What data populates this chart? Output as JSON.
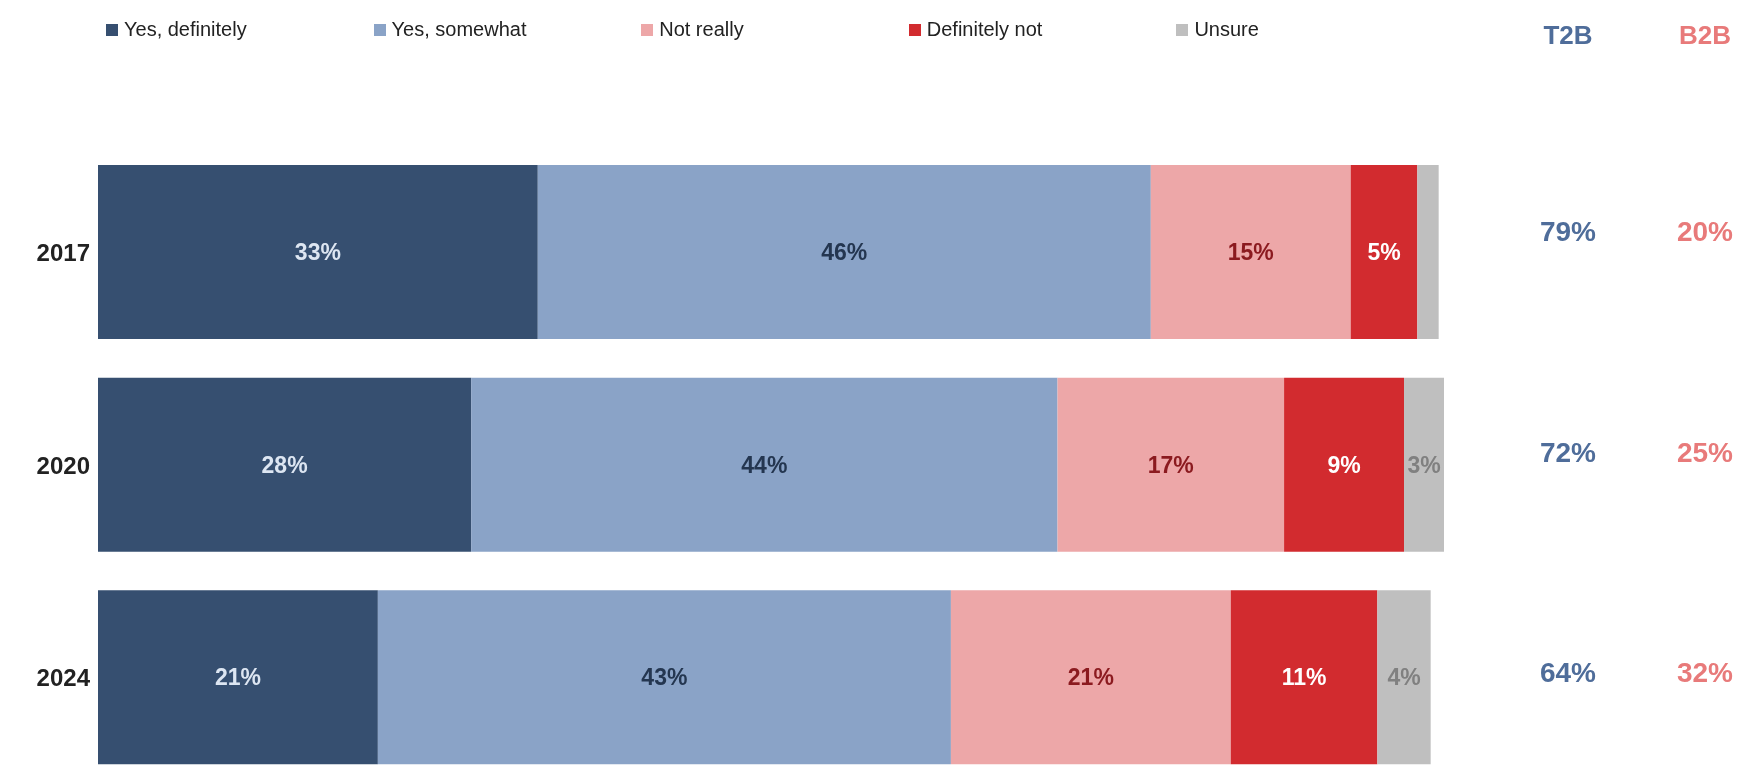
{
  "chart_data": {
    "type": "bar",
    "orientation": "horizontal",
    "stacked": true,
    "categories": [
      "2017",
      "2020",
      "2024"
    ],
    "xlim": [
      0,
      101
    ],
    "tick_labels": "y",
    "legend": "top left",
    "series": [
      {
        "name": "Yes, definitely",
        "color": "#364f70",
        "values": [
          33,
          28,
          21
        ],
        "value_labels": [
          "33%",
          "28%",
          "21%"
        ]
      },
      {
        "name": "Yes, somewhat",
        "color": "#8aa3c7",
        "values": [
          46,
          44,
          43
        ],
        "value_labels": [
          "46%",
          "44%",
          "43%"
        ]
      },
      {
        "name": "Not really",
        "color": "#eda7a8",
        "values": [
          15,
          17,
          21
        ],
        "value_labels": [
          "15%",
          "17%",
          "21%"
        ]
      },
      {
        "name": "Definitely not",
        "color": "#d22b2f",
        "values": [
          5,
          9,
          11
        ],
        "value_labels": [
          "5%",
          "9%",
          "11%"
        ]
      },
      {
        "name": "Unsure",
        "color": "#bfbfbf",
        "values": [
          1.6,
          3,
          4
        ],
        "value_labels": [
          null,
          "3%",
          "4%"
        ]
      }
    ],
    "annotations": [
      "T2B",
      "B2B",
      "79%",
      "20%",
      "72%",
      "25%",
      "64%",
      "32%"
    ]
  }
}
